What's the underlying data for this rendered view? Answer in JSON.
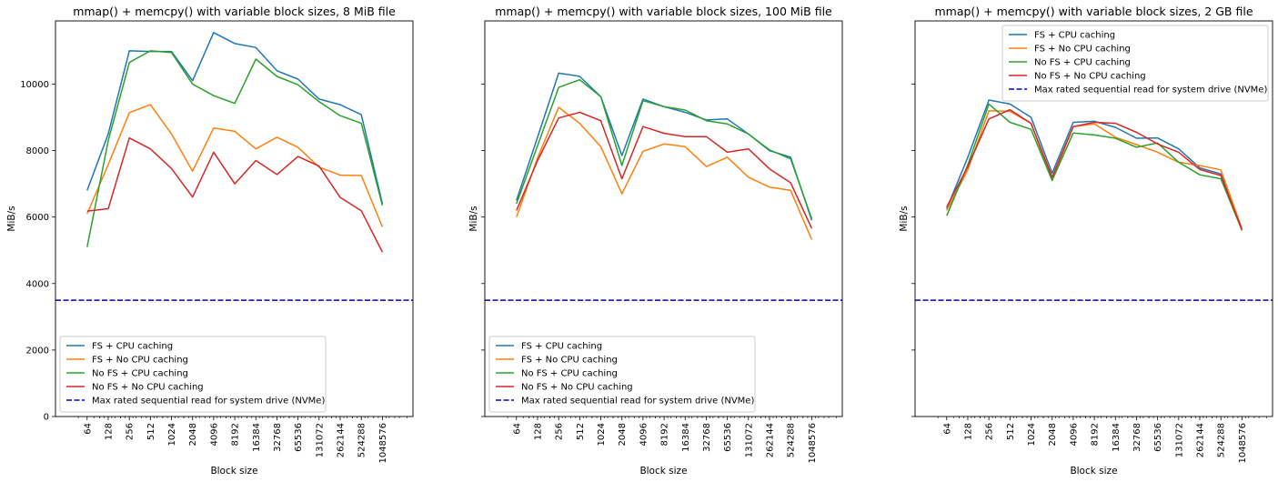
{
  "colors": {
    "fs_cpu": "#1f77b4",
    "fs_nocpu": "#ff7f0e",
    "nofs_cpu": "#2ca02c",
    "nofs_nocpu": "#d62728",
    "max_rated": "#0000cc"
  },
  "chart_data": [
    {
      "type": "line",
      "title": "mmap() + memcpy() with variable block sizes, 8 MiB file",
      "xlabel": "Block size",
      "ylabel": "MiB/s",
      "x_scale": "log2",
      "categories": [
        "64",
        "128",
        "256",
        "512",
        "1024",
        "2048",
        "4096",
        "8192",
        "16384",
        "32768",
        "65536",
        "131072",
        "262144",
        "524288",
        "1048576"
      ],
      "yticks": [
        "0",
        "2000",
        "4000",
        "6000",
        "8000",
        "10000"
      ],
      "ylim": [
        0,
        11900
      ],
      "legend_position": "lower-left",
      "grid": false,
      "series": [
        {
          "name": "FS + CPU caching",
          "style": "solid",
          "color_key": "fs_cpu",
          "values": [
            6800,
            8500,
            11000,
            10980,
            10980,
            10100,
            11550,
            11220,
            11100,
            10400,
            10150,
            9550,
            9380,
            9080,
            6400
          ]
        },
        {
          "name": "FS + No CPU caching",
          "style": "solid",
          "color_key": "fs_nocpu",
          "values": [
            6100,
            7580,
            9140,
            9380,
            8500,
            7380,
            8680,
            8580,
            8050,
            8400,
            8100,
            7500,
            7260,
            7250,
            5700
          ]
        },
        {
          "name": "No FS + CPU caching",
          "style": "solid",
          "color_key": "nofs_cpu",
          "values": [
            5100,
            8300,
            10650,
            11000,
            10950,
            10000,
            9650,
            9420,
            10750,
            10230,
            9980,
            9470,
            9050,
            8820,
            6350
          ]
        },
        {
          "name": "No FS + No CPU caching",
          "style": "solid",
          "color_key": "nofs_nocpu",
          "values": [
            6180,
            6250,
            8380,
            8050,
            7460,
            6600,
            7950,
            7000,
            7700,
            7280,
            7820,
            7530,
            6590,
            6190,
            4950
          ]
        },
        {
          "name": "Max rated sequential read for system drive (NVMe)",
          "style": "dashed",
          "color_key": "max_rated",
          "values": [
            3500,
            3500,
            3500,
            3500,
            3500,
            3500,
            3500,
            3500,
            3500,
            3500,
            3500,
            3500,
            3500,
            3500,
            3500
          ]
        }
      ]
    },
    {
      "type": "line",
      "title": "mmap() + memcpy() with variable block sizes, 100 MiB file",
      "xlabel": "Block size",
      "ylabel": "MiB/s",
      "x_scale": "log2",
      "categories": [
        "64",
        "128",
        "256",
        "512",
        "1024",
        "2048",
        "4096",
        "8192",
        "16384",
        "32768",
        "65536",
        "131072",
        "262144",
        "524288",
        "1048576"
      ],
      "yticks": [],
      "ylim": [
        0,
        11900
      ],
      "legend_position": "lower-left",
      "grid": false,
      "series": [
        {
          "name": "FS + CPU caching",
          "style": "solid",
          "color_key": "fs_cpu",
          "values": [
            6500,
            8400,
            10330,
            10230,
            9620,
            7850,
            9550,
            9320,
            9150,
            8920,
            8950,
            8500,
            8000,
            7800,
            5900
          ]
        },
        {
          "name": "FS + No CPU caching",
          "style": "solid",
          "color_key": "fs_nocpu",
          "values": [
            6000,
            7780,
            9300,
            8820,
            8120,
            6700,
            7980,
            8200,
            8120,
            7520,
            7800,
            7200,
            6900,
            6800,
            5320
          ]
        },
        {
          "name": "No FS + CPU caching",
          "style": "solid",
          "color_key": "nofs_cpu",
          "values": [
            6400,
            8150,
            9900,
            10130,
            9620,
            7550,
            9500,
            9320,
            9220,
            8900,
            8800,
            8500,
            8020,
            7750,
            5950
          ]
        },
        {
          "name": "No FS + No CPU caching",
          "style": "solid",
          "color_key": "nofs_nocpu",
          "values": [
            6200,
            7700,
            8980,
            9150,
            8900,
            7150,
            8720,
            8520,
            8420,
            8420,
            7950,
            8050,
            7450,
            7030,
            5660
          ]
        },
        {
          "name": "Max rated sequential read for system drive (NVMe)",
          "style": "dashed",
          "color_key": "max_rated",
          "values": [
            3500,
            3500,
            3500,
            3500,
            3500,
            3500,
            3500,
            3500,
            3500,
            3500,
            3500,
            3500,
            3500,
            3500,
            3500
          ]
        }
      ]
    },
    {
      "type": "line",
      "title": "mmap() + memcpy() with variable block sizes, 2 GB file",
      "xlabel": "Block size",
      "ylabel": "MiB/s",
      "x_scale": "log2",
      "categories": [
        "64",
        "128",
        "256",
        "512",
        "1024",
        "2048",
        "4096",
        "8192",
        "16384",
        "32768",
        "65536",
        "131072",
        "262144",
        "524288",
        "1048576"
      ],
      "yticks": [],
      "ylim": [
        0,
        11900
      ],
      "legend_position": "top-right",
      "grid": false,
      "series": [
        {
          "name": "FS + CPU caching",
          "style": "solid",
          "color_key": "fs_cpu",
          "values": [
            6250,
            7800,
            9520,
            9400,
            9000,
            7320,
            8850,
            8880,
            8700,
            8370,
            8380,
            8050,
            7480,
            7300,
            5600
          ]
        },
        {
          "name": "FS + No CPU caching",
          "style": "solid",
          "color_key": "fs_nocpu",
          "values": [
            6200,
            7420,
            9200,
            9180,
            8820,
            7130,
            8720,
            8800,
            8400,
            8180,
            7950,
            7650,
            7550,
            7420,
            5650
          ]
        },
        {
          "name": "No FS + CPU caching",
          "style": "solid",
          "color_key": "nofs_cpu",
          "values": [
            6040,
            7570,
            9400,
            8850,
            8640,
            7100,
            8530,
            8470,
            8370,
            8100,
            8230,
            7650,
            7270,
            7150,
            5600
          ]
        },
        {
          "name": "No FS + No CPU caching",
          "style": "solid",
          "color_key": "nofs_nocpu",
          "values": [
            6300,
            7520,
            8950,
            9230,
            8820,
            7200,
            8720,
            8850,
            8820,
            8550,
            8200,
            7950,
            7430,
            7250,
            5620
          ]
        },
        {
          "name": "Max rated sequential read for system drive (NVMe)",
          "style": "dashed",
          "color_key": "max_rated",
          "values": [
            3500,
            3500,
            3500,
            3500,
            3500,
            3500,
            3500,
            3500,
            3500,
            3500,
            3500,
            3500,
            3500,
            3500,
            3500
          ]
        }
      ]
    }
  ]
}
